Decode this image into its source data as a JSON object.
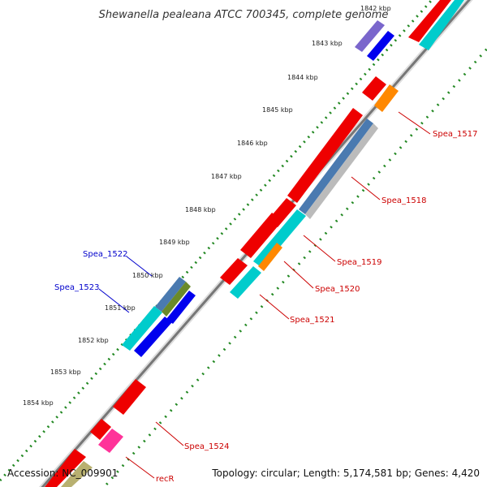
{
  "title": "Shewanella pealeana ATCC 700345, complete genome",
  "accession_text": "Accession: NC_009901",
  "topology_text": "Topology: circular; Length: 5,174,581 bp; Genes: 4,420",
  "kbp_labels": [
    "1842 kbp",
    "1843 kbp",
    "1844 kbp",
    "1845 kbp",
    "1846 kbp",
    "1847 kbp",
    "1848 kbp",
    "1849 kbp",
    "1850 kbp",
    "1851 kbp",
    "1852 kbp",
    "1853 kbp",
    "1854 kbp"
  ],
  "gene_labels_right": [
    "Spea_1517",
    "Spea_1518",
    "Spea_1519",
    "Spea_1520",
    "Spea_1521",
    "Spea_1524",
    "recR"
  ],
  "gene_labels_left": [
    "Spea_1522",
    "Spea_1523"
  ],
  "colors": {
    "cds": "#ee0000",
    "cds_dark": "#aa0000",
    "gene": "#00cccc",
    "gene_dark": "#008a8a",
    "blue_feature": "#0000ee",
    "orange_feature": "#ff8800",
    "steel_feature": "#4a7ab0",
    "olive_feature": "#6a8a2a",
    "purple_feature": "#7a66cc",
    "magenta_feature": "#ff3399",
    "khaki_feature": "#b8b070",
    "backbone": "#777777",
    "tick_dots": "#228822",
    "label_red": "#cc0000",
    "label_blue": "#0000cc"
  }
}
